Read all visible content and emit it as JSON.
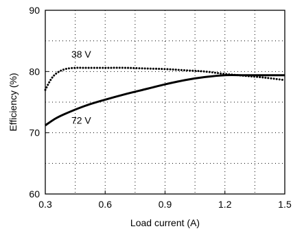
{
  "chart_data": {
    "type": "line",
    "xlabel": "Load current (A)",
    "ylabel": "Efficiency (%)",
    "xlim": [
      0.3,
      1.5
    ],
    "ylim": [
      60,
      90
    ],
    "x_ticks": [
      0.3,
      0.6,
      0.9,
      1.2,
      1.5
    ],
    "x_tick_labels": [
      "0.3",
      "0.6",
      "0.9",
      "1.2",
      "1.5"
    ],
    "y_ticks": [
      60,
      70,
      80,
      90
    ],
    "y_tick_labels": [
      "60",
      "70",
      "80",
      "90"
    ],
    "x_grid": [
      0.45,
      0.6,
      0.75,
      0.9,
      1.05,
      1.2,
      1.35
    ],
    "y_grid": [
      65,
      70,
      75,
      80,
      85
    ],
    "grid": true,
    "series": [
      {
        "name": "38 V",
        "style": "dotted",
        "color": "#000000",
        "x": [
          0.3,
          0.33,
          0.36,
          0.4,
          0.45,
          0.5,
          0.6,
          0.7,
          0.8,
          0.9,
          1.0,
          1.1,
          1.2,
          1.3,
          1.4,
          1.5
        ],
        "y": [
          77.0,
          78.8,
          79.8,
          80.4,
          80.6,
          80.6,
          80.6,
          80.6,
          80.5,
          80.4,
          80.2,
          80.0,
          79.6,
          79.3,
          79.0,
          78.6
        ]
      },
      {
        "name": "72 V",
        "style": "solid",
        "color": "#000000",
        "x": [
          0.3,
          0.35,
          0.4,
          0.5,
          0.6,
          0.7,
          0.8,
          0.9,
          1.0,
          1.1,
          1.2,
          1.3,
          1.4,
          1.5
        ],
        "y": [
          71.2,
          72.3,
          73.1,
          74.4,
          75.4,
          76.3,
          77.1,
          77.9,
          78.6,
          79.1,
          79.4,
          79.4,
          79.4,
          79.4
        ]
      }
    ],
    "annotations": [
      {
        "text": "38 V",
        "x": 0.48,
        "y": 82.3
      },
      {
        "text": "72 V",
        "x": 0.48,
        "y": 71.5
      }
    ]
  }
}
